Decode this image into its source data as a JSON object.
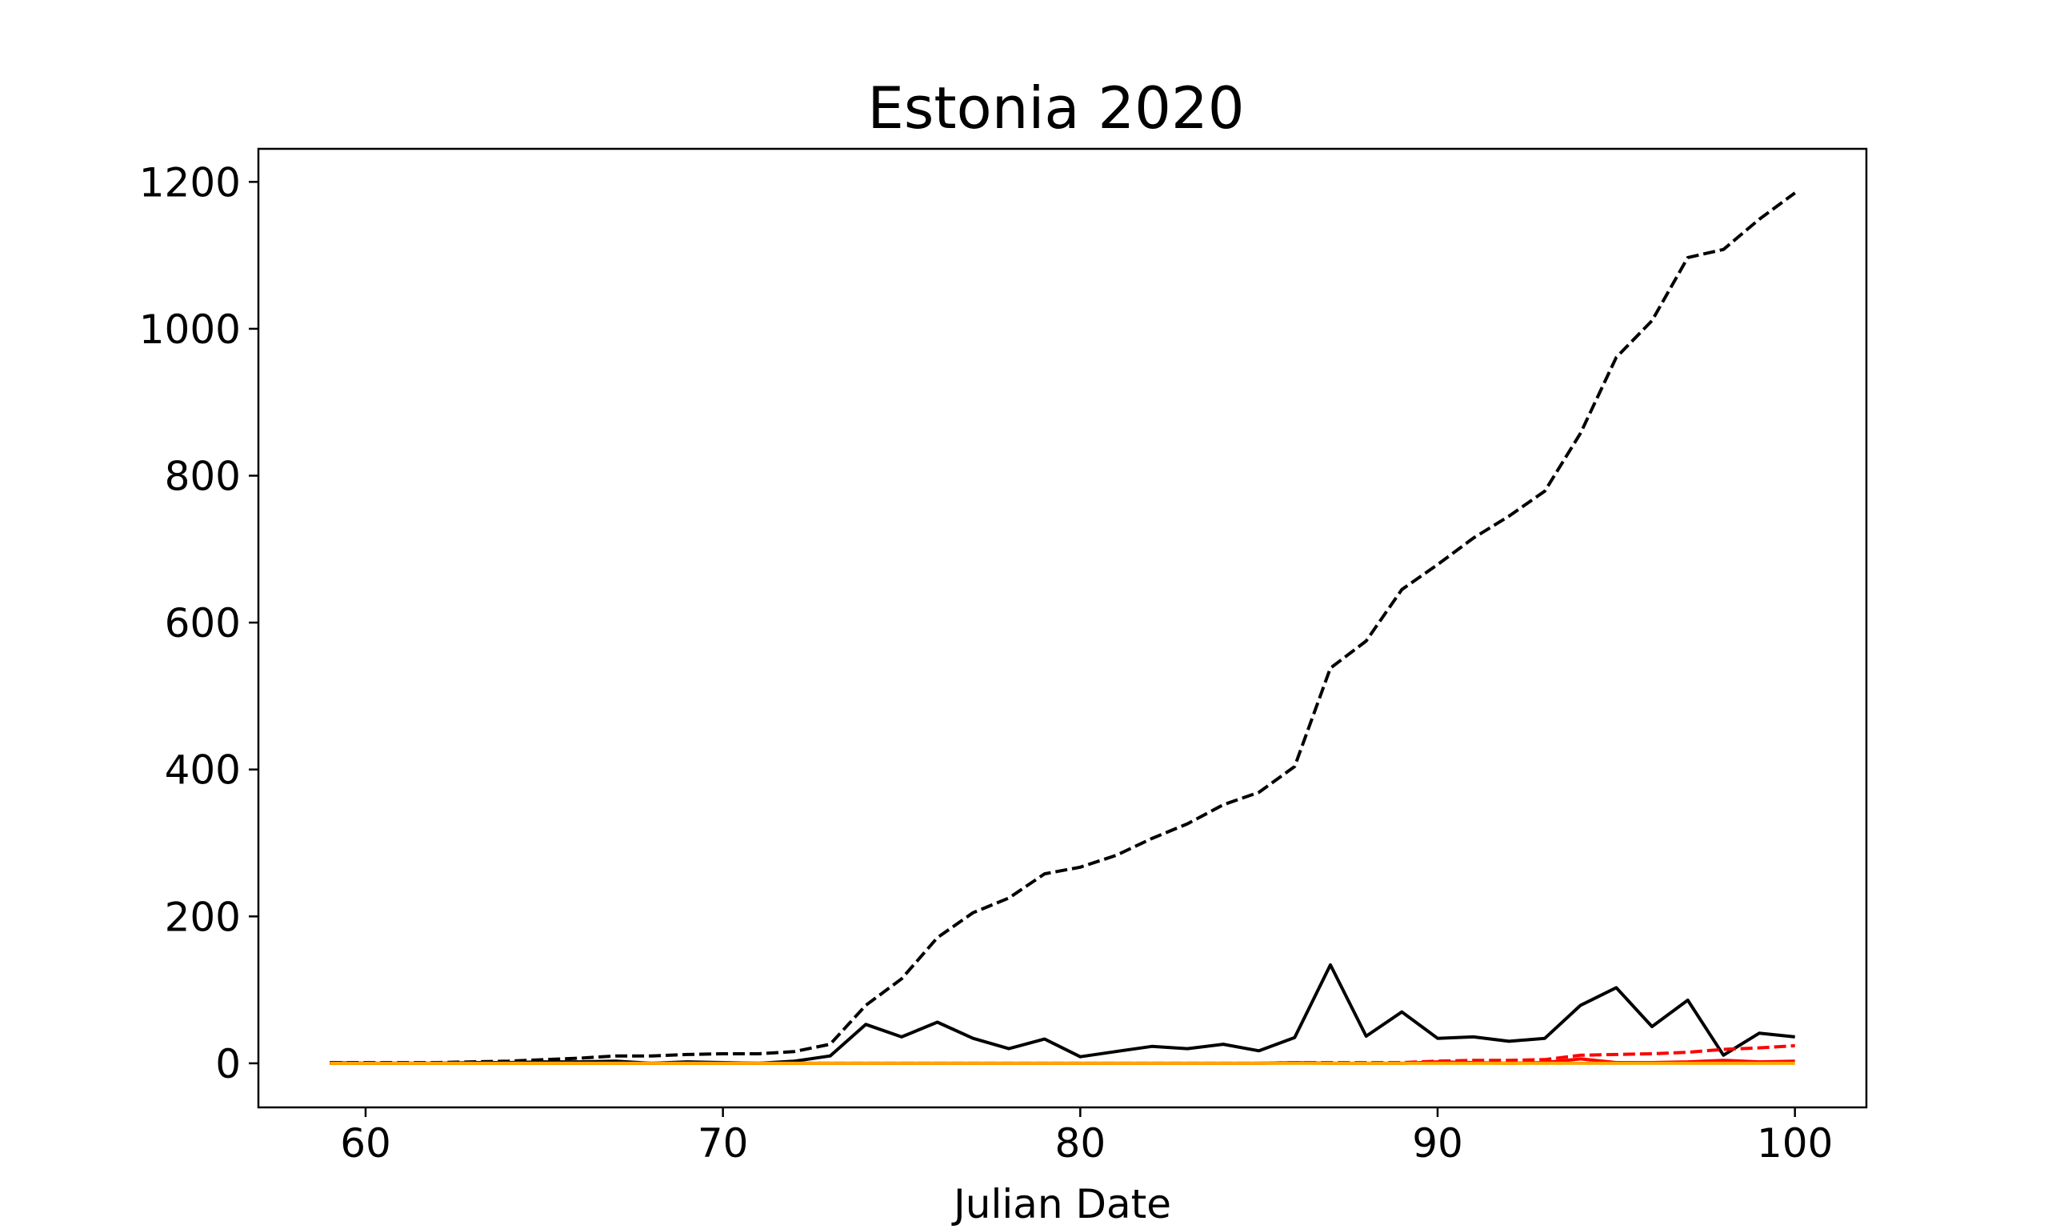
{
  "chart_data": {
    "type": "line",
    "title": "Estonia 2020",
    "xlabel": "Julian Date",
    "ylabel": "",
    "xlim": [
      57,
      102
    ],
    "ylim": [
      -60,
      1245
    ],
    "xticks": [
      60,
      70,
      80,
      90,
      100
    ],
    "yticks": [
      0,
      200,
      400,
      600,
      800,
      1000,
      1200
    ],
    "grid": false,
    "x": [
      59,
      60,
      61,
      62,
      63,
      64,
      65,
      66,
      67,
      68,
      69,
      70,
      71,
      72,
      73,
      74,
      75,
      76,
      77,
      78,
      79,
      80,
      81,
      82,
      83,
      84,
      85,
      86,
      87,
      88,
      89,
      90,
      91,
      92,
      93,
      94,
      95,
      96,
      97,
      98,
      99,
      100
    ],
    "series": [
      {
        "color": "#000000",
        "dash": "dashed",
        "values": [
          1,
          1,
          1,
          1,
          2,
          3,
          5,
          7,
          10,
          10,
          12,
          13,
          13,
          16,
          26,
          79,
          115,
          171,
          205,
          225,
          258,
          267,
          283,
          306,
          326,
          352,
          369,
          404,
          538,
          575,
          645,
          679,
          715,
          745,
          779,
          858,
          961,
          1011,
          1097,
          1108,
          1149,
          1185
        ]
      },
      {
        "color": "#000000",
        "dash": "solid",
        "values": [
          1,
          0,
          0,
          0,
          1,
          1,
          2,
          2,
          3,
          0,
          2,
          1,
          0,
          3,
          10,
          53,
          36,
          56,
          34,
          20,
          33,
          9,
          16,
          23,
          20,
          26,
          17,
          35,
          134,
          37,
          70,
          34,
          36,
          30,
          34,
          79,
          103,
          50,
          86,
          11,
          41,
          36
        ]
      },
      {
        "color": "#ff0000",
        "dash": "dashed",
        "values": [
          0,
          0,
          0,
          0,
          0,
          0,
          0,
          0,
          0,
          0,
          0,
          0,
          0,
          0,
          0,
          0,
          0,
          0,
          0,
          0,
          0,
          0,
          0,
          0,
          0,
          0,
          0,
          1,
          1,
          1,
          1,
          3,
          4,
          4,
          5,
          11,
          12,
          13,
          15,
          19,
          21,
          24
        ]
      },
      {
        "color": "#ff0000",
        "dash": "solid",
        "values": [
          0,
          0,
          0,
          0,
          0,
          0,
          0,
          0,
          0,
          0,
          0,
          0,
          0,
          0,
          0,
          0,
          0,
          0,
          0,
          0,
          0,
          0,
          0,
          0,
          0,
          0,
          0,
          1,
          0,
          0,
          0,
          2,
          1,
          0,
          1,
          6,
          1,
          1,
          2,
          4,
          2,
          3
        ]
      },
      {
        "color": "#ffa500",
        "dash": "solid",
        "values": [
          0,
          0,
          0,
          0,
          0,
          0,
          0,
          0,
          0,
          0,
          0,
          0,
          0,
          0,
          0,
          0,
          0,
          0,
          0,
          0,
          0,
          0,
          0,
          0,
          0,
          0,
          0,
          0,
          0,
          0,
          0,
          0,
          0,
          0,
          0,
          0,
          0,
          0,
          0,
          0,
          0,
          0
        ]
      }
    ]
  }
}
